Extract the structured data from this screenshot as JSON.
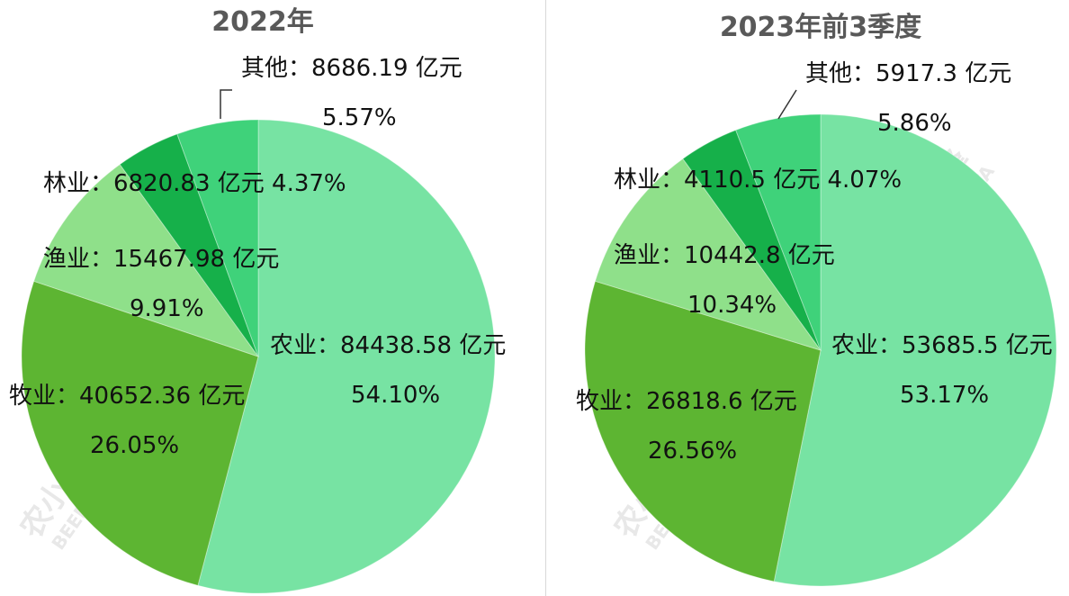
{
  "colors": {
    "农业": "#77e3a3",
    "牧业": "#5db532",
    "渔业": "#8fe08a",
    "林业": "#16b04a",
    "其他": "#3fd27a",
    "divider": "#d9d9d9",
    "title": "#595959"
  },
  "chart_data": [
    {
      "type": "pie",
      "title": "2022年",
      "slices": [
        {
          "name": "农业",
          "value": 84438.58,
          "percent": 54.1,
          "line1": "农业：84438.58 亿元",
          "line2": "54.10%"
        },
        {
          "name": "牧业",
          "value": 40652.36,
          "percent": 26.05,
          "line1": "牧业：40652.36 亿元",
          "line2": "26.05%"
        },
        {
          "name": "渔业",
          "value": 15467.98,
          "percent": 9.91,
          "line1": "渔业：15467.98 亿元",
          "line2": "9.91%"
        },
        {
          "name": "林业",
          "value": 6820.83,
          "percent": 4.37,
          "line1": "林业：6820.83 亿元 4.37%",
          "line2": ""
        },
        {
          "name": "其他",
          "value": 8686.19,
          "percent": 5.57,
          "line1": "其他：8686.19 亿元",
          "line2": "5.57%"
        }
      ]
    },
    {
      "type": "pie",
      "title": "2023年前3季度",
      "slices": [
        {
          "name": "农业",
          "value": 53685.5,
          "percent": 53.17,
          "line1": "农业：53685.5 亿元",
          "line2": "53.17%"
        },
        {
          "name": "牧业",
          "value": 26818.6,
          "percent": 26.56,
          "line1": "牧业：26818.6 亿元",
          "line2": "26.56%"
        },
        {
          "name": "渔业",
          "value": 10442.8,
          "percent": 10.34,
          "line1": "渔业：10442.8 亿元",
          "line2": "10.34%"
        },
        {
          "name": "林业",
          "value": 4110.5,
          "percent": 4.07,
          "line1": "林业：4110.5 亿元 4.07%",
          "line2": ""
        },
        {
          "name": "其他",
          "value": 5917.3,
          "percent": 5.86,
          "line1": "其他：5917.3 亿元",
          "line2": "5.86%"
        }
      ]
    }
  ],
  "watermark": {
    "text": "农小蜂",
    "sub": "BEEDATA"
  }
}
